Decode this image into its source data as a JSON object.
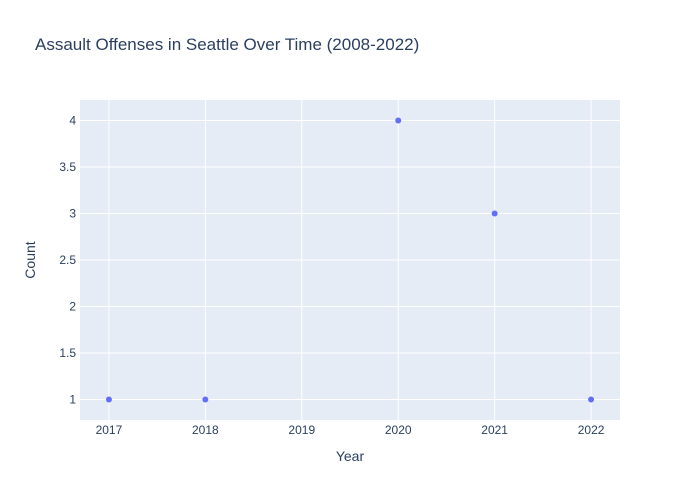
{
  "chart_data": {
    "type": "scatter",
    "title": "Assault Offenses in Seattle Over Time (2008-2022)",
    "xlabel": "Year",
    "ylabel": "Count",
    "x": [
      2017,
      2018,
      2020,
      2021,
      2022
    ],
    "y": [
      1,
      1,
      4,
      3,
      1
    ],
    "x_ticks": [
      "2017",
      "2018",
      "2019",
      "2020",
      "2021",
      "2022"
    ],
    "y_ticks": [
      "1",
      "1.5",
      "2",
      "2.5",
      "3",
      "3.5",
      "4"
    ],
    "xlim": [
      2016.7,
      2022.3
    ],
    "ylim": [
      0.78,
      4.22
    ],
    "grid": true,
    "colors": {
      "marker": "#636efa",
      "plot_bg": "#e5ecf6",
      "grid": "#ffffff",
      "text": "#2a3f5f"
    }
  }
}
